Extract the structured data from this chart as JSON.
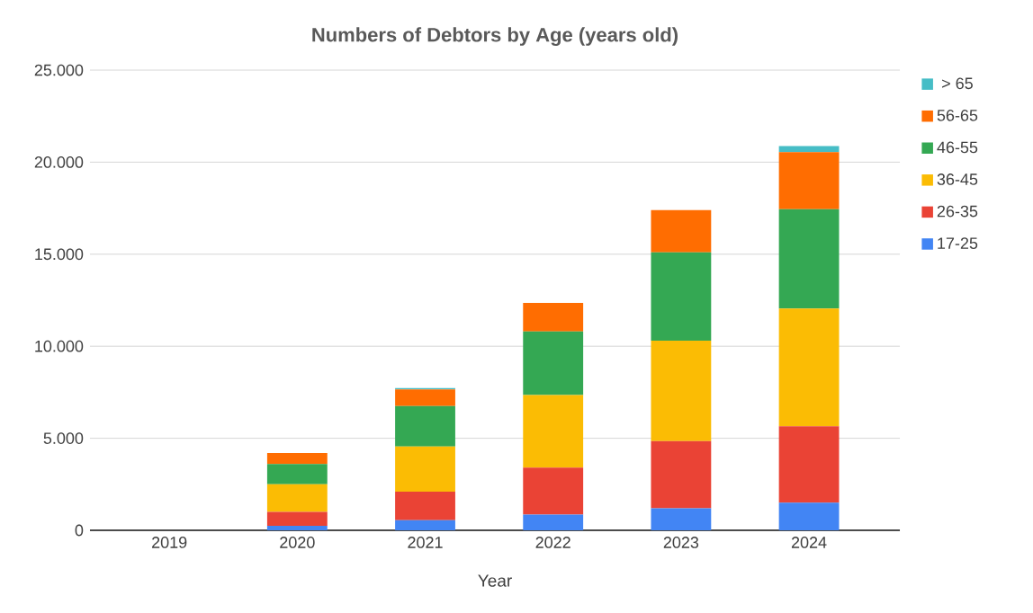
{
  "chart_data": {
    "type": "bar",
    "title": "Numbers of Debtors by Age (years old)",
    "xlabel": "Year",
    "categories": [
      "2019",
      "2020",
      "2021",
      "2022",
      "2023",
      "2024"
    ],
    "stacked": true,
    "series": [
      {
        "name": "17-25",
        "color": "#4285f4",
        "values": [
          0,
          250,
          550,
          850,
          1200,
          1500
        ]
      },
      {
        "name": "26-35",
        "color": "#ea4335",
        "values": [
          0,
          750,
          1550,
          2550,
          3650,
          4150
        ]
      },
      {
        "name": "36-45",
        "color": "#fbbc04",
        "values": [
          0,
          1500,
          2450,
          3950,
          5450,
          6400
        ]
      },
      {
        "name": "46-55",
        "color": "#34a853",
        "values": [
          0,
          1100,
          2200,
          3450,
          4800,
          5400
        ]
      },
      {
        "name": "56-65",
        "color": "#ff6d01",
        "values": [
          0,
          600,
          900,
          1550,
          2300,
          3100
        ]
      },
      {
        "name": "> 65",
        "color": "#46bdc6",
        "values": [
          0,
          0,
          80,
          0,
          0,
          330
        ]
      }
    ],
    "ylim": [
      0,
      25000
    ],
    "yticks": [
      {
        "value": 0,
        "label": "0"
      },
      {
        "value": 5000,
        "label": "5.000"
      },
      {
        "value": 10000,
        "label": "10.000"
      },
      {
        "value": 15000,
        "label": "15.000"
      },
      {
        "value": 20000,
        "label": "20.000"
      },
      {
        "value": 25000,
        "label": "25.000"
      }
    ],
    "grid": "y",
    "legend": "right"
  }
}
